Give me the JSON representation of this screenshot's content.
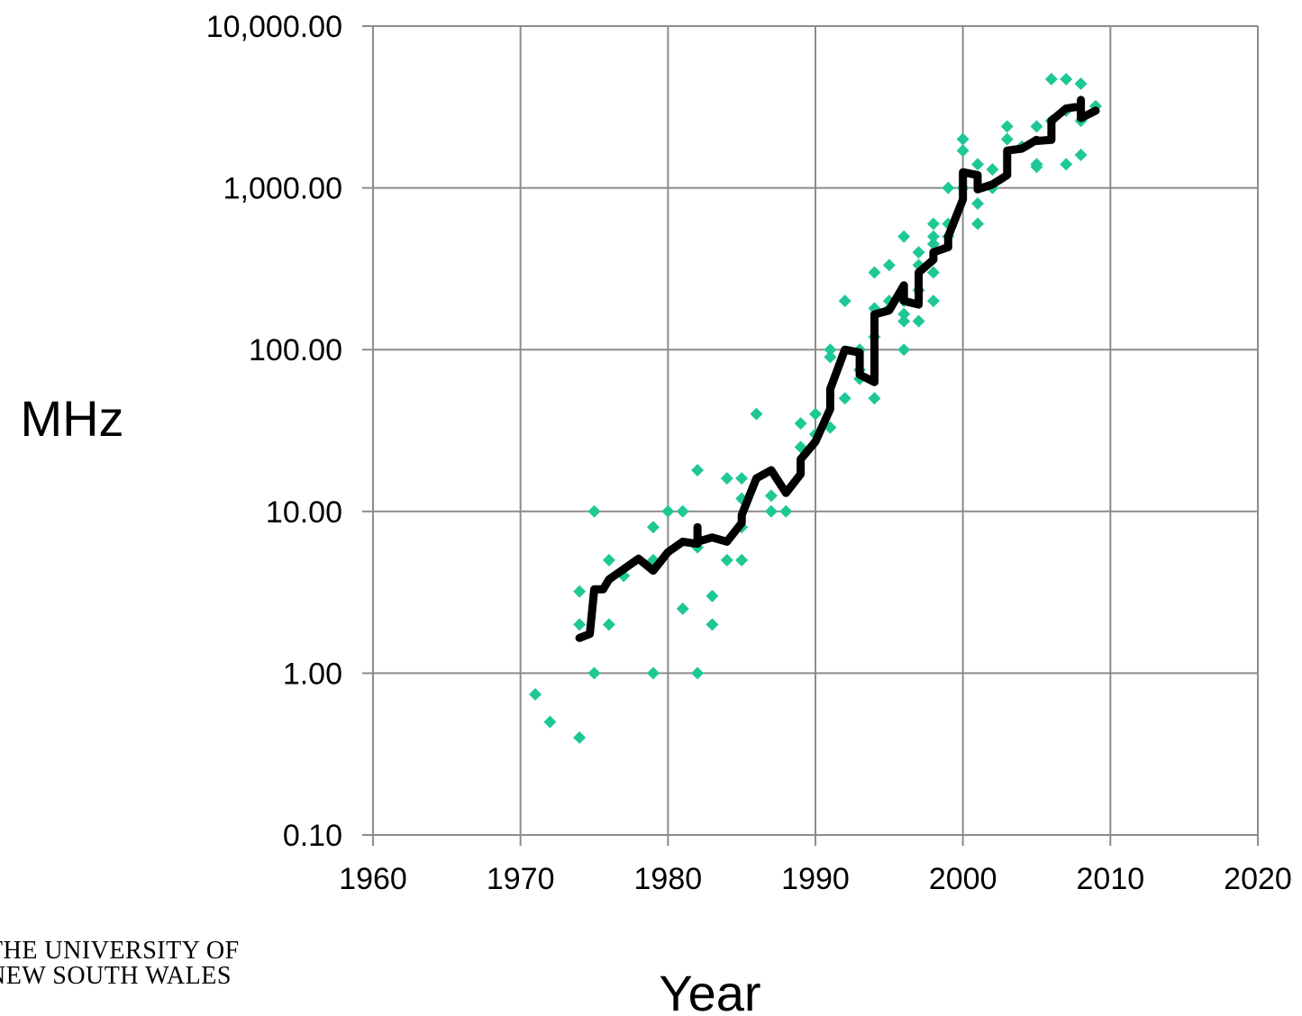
{
  "chart_data": {
    "type": "scatter",
    "title": "",
    "xlabel": "Year",
    "ylabel": "MHz",
    "xlim": [
      1960,
      2020
    ],
    "ylim": [
      0.1,
      10000
    ],
    "y_scale": "log",
    "grid": true,
    "legend": "none",
    "x_ticks": [
      "1960",
      "1970",
      "1980",
      "1990",
      "2000",
      "2010",
      "2020"
    ],
    "y_ticks": [
      "0.10",
      "1.00",
      "10.00",
      "100.00",
      "1,000.00",
      "10,000.00"
    ],
    "colors": {
      "points": "#1ec896",
      "trend": "#000000",
      "grid": "#8c8c8c"
    },
    "series": [
      {
        "type": "scatter",
        "points": [
          [
            1971,
            0.74
          ],
          [
            1972,
            0.5
          ],
          [
            1974,
            0.4
          ],
          [
            1974,
            2
          ],
          [
            1974,
            3.2
          ],
          [
            1975,
            1
          ],
          [
            1975,
            10
          ],
          [
            1976,
            2
          ],
          [
            1976,
            5
          ],
          [
            1977,
            4
          ],
          [
            1979,
            1
          ],
          [
            1979,
            5
          ],
          [
            1979,
            8
          ],
          [
            1980,
            10
          ],
          [
            1981,
            2.5
          ],
          [
            1981,
            10
          ],
          [
            1982,
            1
          ],
          [
            1982,
            6
          ],
          [
            1982,
            18
          ],
          [
            1983,
            2
          ],
          [
            1983,
            3
          ],
          [
            1984,
            5
          ],
          [
            1984,
            16
          ],
          [
            1985,
            5
          ],
          [
            1985,
            8
          ],
          [
            1985,
            12
          ],
          [
            1985,
            16
          ],
          [
            1986,
            40
          ],
          [
            1987,
            10
          ],
          [
            1987,
            12.5
          ],
          [
            1988,
            10
          ],
          [
            1989,
            25
          ],
          [
            1989,
            35
          ],
          [
            1990,
            40
          ],
          [
            1990,
            30
          ],
          [
            1991,
            33
          ],
          [
            1991,
            90
          ],
          [
            1991,
            100
          ],
          [
            1992,
            50
          ],
          [
            1992,
            200
          ],
          [
            1993,
            66
          ],
          [
            1993,
            75
          ],
          [
            1993,
            100
          ],
          [
            1994,
            50
          ],
          [
            1994,
            120
          ],
          [
            1994,
            180
          ],
          [
            1994,
            300
          ],
          [
            1995,
            180
          ],
          [
            1995,
            200
          ],
          [
            1995,
            333
          ],
          [
            1996,
            100
          ],
          [
            1996,
            150
          ],
          [
            1996,
            166
          ],
          [
            1996,
            200
          ],
          [
            1996,
            500
          ],
          [
            1997,
            150
          ],
          [
            1997,
            233
          ],
          [
            1997,
            333
          ],
          [
            1997,
            400
          ],
          [
            1998,
            200
          ],
          [
            1998,
            300
          ],
          [
            1998,
            450
          ],
          [
            1998,
            500
          ],
          [
            1998,
            600
          ],
          [
            1999,
            500
          ],
          [
            1999,
            600
          ],
          [
            1999,
            1000
          ],
          [
            2000,
            1000
          ],
          [
            2000,
            1700
          ],
          [
            2000,
            2000
          ],
          [
            2001,
            600
          ],
          [
            2001,
            800
          ],
          [
            2001,
            1400
          ],
          [
            2002,
            1000
          ],
          [
            2002,
            1300
          ],
          [
            2003,
            2000
          ],
          [
            2003,
            2400
          ],
          [
            2004,
            1800
          ],
          [
            2005,
            1350
          ],
          [
            2005,
            1400
          ],
          [
            2005,
            2400
          ],
          [
            2006,
            2600
          ],
          [
            2006,
            4700
          ],
          [
            2007,
            1400
          ],
          [
            2007,
            3000
          ],
          [
            2007,
            4700
          ],
          [
            2008,
            1600
          ],
          [
            2008,
            2600
          ],
          [
            2008,
            4400
          ],
          [
            2009,
            3200
          ]
        ]
      },
      {
        "type": "line",
        "points": [
          [
            1974,
            1.65
          ],
          [
            1974.7,
            1.75
          ],
          [
            1975,
            3.3
          ],
          [
            1975.6,
            3.3
          ],
          [
            1976,
            3.8
          ],
          [
            1978,
            5.1
          ],
          [
            1979,
            4.3
          ],
          [
            1980,
            5.6
          ],
          [
            1981,
            6.5
          ],
          [
            1982,
            6.3
          ],
          [
            1982,
            8
          ],
          [
            1982,
            6.5
          ],
          [
            1983,
            6.9
          ],
          [
            1984,
            6.5
          ],
          [
            1985,
            8.5
          ],
          [
            1985,
            9.5
          ],
          [
            1986,
            16
          ],
          [
            1987,
            18
          ],
          [
            1988,
            13
          ],
          [
            1989,
            17
          ],
          [
            1989,
            21
          ],
          [
            1990,
            27
          ],
          [
            1991,
            43
          ],
          [
            1991,
            57
          ],
          [
            1992,
            100
          ],
          [
            1993,
            96
          ],
          [
            1993,
            70
          ],
          [
            1994,
            63
          ],
          [
            1994,
            165
          ],
          [
            1995,
            175
          ],
          [
            1996,
            250
          ],
          [
            1996,
            200
          ],
          [
            1997,
            190
          ],
          [
            1997,
            300
          ],
          [
            1998,
            360
          ],
          [
            1998,
            400
          ],
          [
            1999,
            430
          ],
          [
            1999,
            500
          ],
          [
            2000,
            850
          ],
          [
            2000,
            1250
          ],
          [
            2001,
            1200
          ],
          [
            2001,
            980
          ],
          [
            2002,
            1050
          ],
          [
            2003,
            1200
          ],
          [
            2003,
            1700
          ],
          [
            2004,
            1750
          ],
          [
            2005,
            1980
          ],
          [
            2005,
            1950
          ],
          [
            2006,
            1980
          ],
          [
            2006,
            2600
          ],
          [
            2007,
            3100
          ],
          [
            2008,
            3200
          ],
          [
            2008,
            3500
          ],
          [
            2008,
            2700
          ],
          [
            2009,
            3000
          ]
        ]
      }
    ]
  },
  "logo": {
    "line1": "THE UNIVERSITY OF",
    "line2": "NEW SOUTH WALES"
  }
}
